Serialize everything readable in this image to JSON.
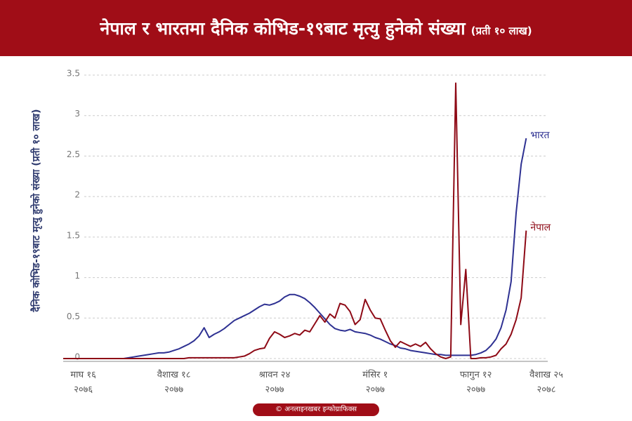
{
  "chart_data": {
    "type": "line",
    "title": "नेपाल र भारतमा दैनिक कोभिड-१९बाट मृत्यु हुनेको संख्या",
    "subtitle": "(प्रती १० लाख)",
    "y_label": "दैनिक कोभिड-१९बाट मृत्यु हुनेको संख्या (प्रती १० लाख)",
    "source": "© अनलाइनखबर इन्फोग्राफिक्स",
    "categories": [
      null,
      null,
      null,
      null,
      "माघ १६\n२०७६",
      null,
      null,
      null,
      null,
      null,
      null,
      null,
      null,
      null,
      null,
      null,
      null,
      null,
      null,
      null,
      null,
      null,
      "वैशाख १८\n२०७७",
      null,
      null,
      null,
      null,
      null,
      null,
      null,
      null,
      null,
      null,
      null,
      null,
      null,
      null,
      null,
      null,
      null,
      null,
      null,
      "श्रावन २४\n२०७७",
      null,
      null,
      null,
      null,
      null,
      null,
      null,
      null,
      null,
      null,
      null,
      null,
      null,
      null,
      null,
      null,
      null,
      null,
      null,
      "मंसिर १\n२०७७",
      null,
      null,
      null,
      null,
      null,
      null,
      null,
      null,
      null,
      null,
      null,
      null,
      null,
      null,
      null,
      null,
      null,
      null,
      null,
      "फागुन १२\n२०७७",
      null,
      null,
      null,
      null,
      null,
      null,
      null,
      null,
      null,
      null,
      null,
      null,
      null,
      "वैशाख २५\n२०७८"
    ],
    "series": [
      {
        "name": "भारत",
        "color": "#2e3192",
        "values": [
          0,
          0,
          0,
          0,
          0,
          0,
          0,
          0,
          0,
          0,
          0,
          0,
          0,
          0.01,
          0.02,
          0.03,
          0.04,
          0.05,
          0.06,
          0.07,
          0.07,
          0.08,
          0.1,
          0.12,
          0.15,
          0.18,
          0.22,
          0.28,
          0.38,
          0.26,
          0.3,
          0.33,
          0.37,
          0.42,
          0.47,
          0.5,
          0.53,
          0.56,
          0.6,
          0.64,
          0.67,
          0.66,
          0.68,
          0.71,
          0.76,
          0.79,
          0.79,
          0.77,
          0.74,
          0.69,
          0.63,
          0.56,
          0.49,
          0.42,
          0.37,
          0.35,
          0.34,
          0.36,
          0.33,
          0.32,
          0.31,
          0.29,
          0.26,
          0.24,
          0.21,
          0.18,
          0.16,
          0.13,
          0.12,
          0.1,
          0.09,
          0.08,
          0.07,
          0.06,
          0.05,
          0.05,
          0.04,
          0.04,
          0.04,
          0.04,
          0.04,
          0.04,
          0.05,
          0.07,
          0.1,
          0.16,
          0.24,
          0.38,
          0.6,
          0.95,
          1.8,
          2.4,
          2.72,
          null,
          null,
          null,
          null
        ]
      },
      {
        "name": "नेपाल",
        "color": "#8e0a16",
        "values": [
          0,
          0,
          0,
          0,
          0,
          0,
          0,
          0,
          0,
          0,
          0,
          0,
          0,
          0,
          0,
          0,
          0,
          0,
          0,
          0,
          0,
          0,
          0,
          0,
          0,
          0.01,
          0.01,
          0.01,
          0.01,
          0.01,
          0.01,
          0.01,
          0.01,
          0.01,
          0.01,
          0.02,
          0.03,
          0.06,
          0.1,
          0.12,
          0.13,
          0.25,
          0.33,
          0.3,
          0.26,
          0.28,
          0.31,
          0.29,
          0.35,
          0.33,
          0.43,
          0.53,
          0.45,
          0.55,
          0.5,
          0.68,
          0.66,
          0.58,
          0.42,
          0.48,
          0.73,
          0.6,
          0.5,
          0.49,
          0.35,
          0.22,
          0.14,
          0.21,
          0.18,
          0.15,
          0.18,
          0.15,
          0.2,
          0.12,
          0.06,
          0.02,
          0,
          0.02,
          3.4,
          0.42,
          1.1,
          0,
          0,
          0.01,
          0.01,
          0.02,
          0.04,
          0.12,
          0.18,
          0.3,
          0.48,
          0.75,
          1.58,
          null,
          null,
          null,
          null
        ]
      }
    ],
    "ylim": [
      0,
      3.5
    ],
    "yticks": [
      0,
      0.5,
      1,
      1.5,
      2,
      2.5,
      3,
      3.5
    ],
    "grid": true
  }
}
